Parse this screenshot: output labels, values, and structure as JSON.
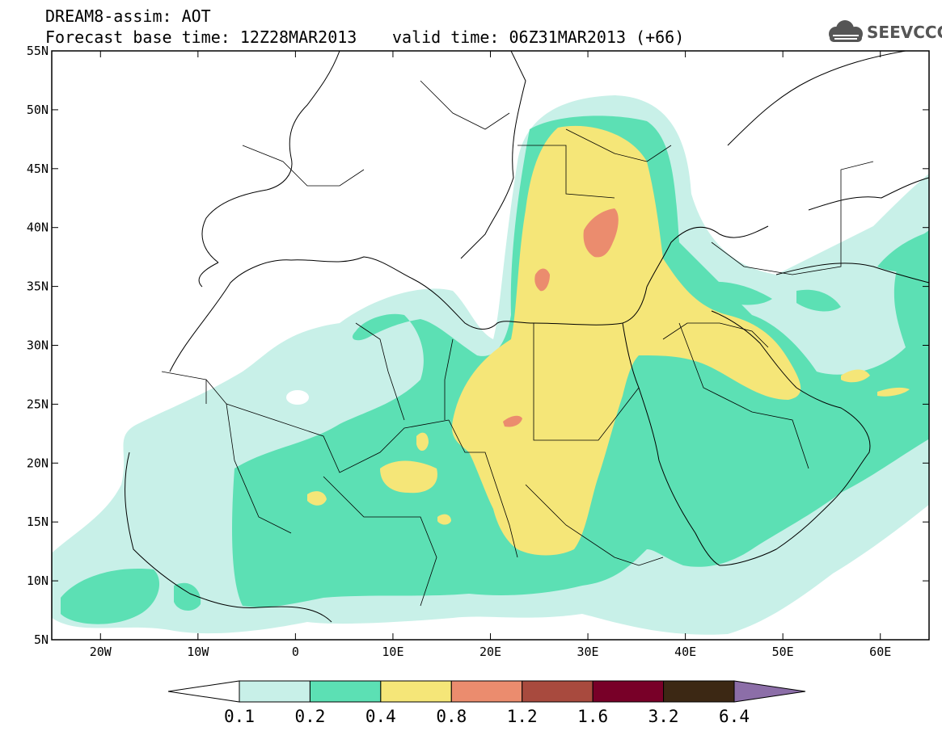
{
  "header": {
    "line1": "DREAM8-assim: AOT",
    "line2": "Forecast base time: 12Z28MAR2013",
    "line3": "valid time: 06Z31MAR2013 (+66)"
  },
  "logo": {
    "text": "SEEVCCC",
    "icon": "cloud-logo-icon",
    "color": "#555555"
  },
  "axes": {
    "lat_labels": [
      "55N",
      "50N",
      "45N",
      "40N",
      "35N",
      "30N",
      "25N",
      "20N",
      "15N",
      "10N",
      "5N"
    ],
    "lon_labels": [
      "20W",
      "10W",
      "0",
      "10E",
      "20E",
      "30E",
      "40E",
      "50E",
      "60E"
    ],
    "lon_range": [
      -25,
      65
    ],
    "lat_range": [
      5,
      55
    ]
  },
  "legend": {
    "labels": [
      "0.1",
      "0.2",
      "0.4",
      "0.8",
      "1.2",
      "1.6",
      "3.2",
      "6.4"
    ],
    "colors": [
      "#ffffff",
      "#c8f0e8",
      "#5ce0b4",
      "#f5e678",
      "#eb8c6e",
      "#a84a3e",
      "#780028",
      "#3c2814",
      "#8c6ea8"
    ]
  }
}
